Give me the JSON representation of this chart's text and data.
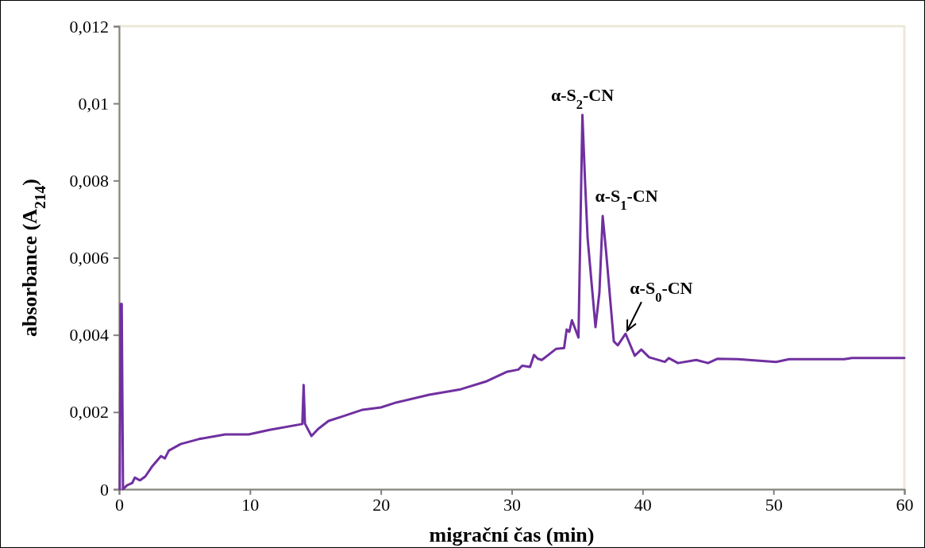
{
  "chart_data": {
    "type": "line",
    "xlabel": "migrační čas (min)",
    "ylabel": "absorbance (A$_{214}$)",
    "xlim": [
      0,
      60
    ],
    "xticks": [
      0,
      10,
      20,
      30,
      40,
      50,
      60
    ],
    "ylim": [
      0,
      0.012
    ],
    "yticks": [
      {
        "value": 0,
        "label": "0"
      },
      {
        "value": 0.002,
        "label": "0,002"
      },
      {
        "value": 0.004,
        "label": "0,004"
      },
      {
        "value": 0.006,
        "label": "0,006"
      },
      {
        "value": 0.008,
        "label": "0,008"
      },
      {
        "value": 0.01,
        "label": "0,01"
      },
      {
        "value": 0.012,
        "label": "0,012"
      }
    ],
    "grid": false,
    "marker": "none",
    "line_style": "solid",
    "series": [
      {
        "color": "#7030a0",
        "x": [
          0.05,
          0.12,
          0.2,
          0.3,
          0.6,
          1.0,
          1.2,
          1.6,
          2.0,
          2.5,
          3.2,
          3.5,
          3.8,
          4.7,
          6.1,
          8.1,
          9.9,
          11.5,
          14.0,
          14.1,
          14.2,
          14.7,
          15.2,
          16.0,
          17.2,
          18.6,
          20.0,
          21.2,
          23.7,
          26.1,
          28.1,
          29.6,
          30.5,
          30.8,
          31.4,
          31.7,
          32.0,
          32.3,
          32.8,
          33.4,
          34.0,
          34.2,
          34.4,
          34.6,
          35.1,
          35.4,
          35.6,
          35.8,
          36.4,
          36.7,
          36.95,
          37.2,
          37.8,
          38.1,
          38.7,
          39.4,
          39.9,
          40.5,
          41.7,
          42.0,
          42.7,
          44.1,
          45.0,
          45.7,
          47.3,
          50.2,
          51.2,
          55.4,
          56.0,
          60
        ],
        "values": [
          0,
          0.0048,
          0.0048,
          0,
          0.0001,
          0.00016,
          0.0003,
          0.00023,
          0.00033,
          0.00058,
          0.00086,
          0.0008,
          0.001,
          0.00117,
          0.0013,
          0.00142,
          0.00142,
          0.00154,
          0.00169,
          0.0027,
          0.0017,
          0.00138,
          0.00156,
          0.00177,
          0.0019,
          0.00206,
          0.00212,
          0.00225,
          0.00245,
          0.00259,
          0.0028,
          0.00304,
          0.0031,
          0.0032,
          0.00317,
          0.00348,
          0.00338,
          0.00335,
          0.00348,
          0.00364,
          0.00366,
          0.00414,
          0.00408,
          0.00438,
          0.00393,
          0.0097,
          0.008,
          0.0065,
          0.0042,
          0.0051,
          0.00708,
          0.0062,
          0.00383,
          0.00373,
          0.00403,
          0.00346,
          0.00362,
          0.00342,
          0.0033,
          0.0034,
          0.00327,
          0.00335,
          0.00327,
          0.00338,
          0.00337,
          0.0033,
          0.00337,
          0.00337,
          0.0034,
          0.0034
        ]
      }
    ],
    "annotations": [
      {
        "text": "α-S$_{2}$-CN",
        "x": 35.4,
        "y": 0.0097
      },
      {
        "text": "α-S$_{1}$-CN",
        "x": 36.95,
        "y": 0.00708
      },
      {
        "text": "α-S$_{0}$-CN",
        "x": 38.7,
        "y": 0.00403
      }
    ]
  }
}
